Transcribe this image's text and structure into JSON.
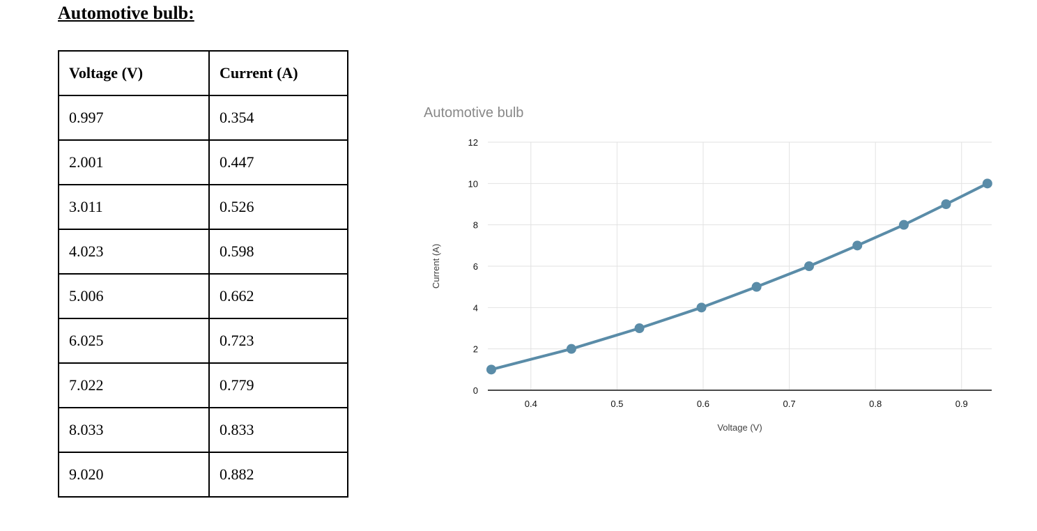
{
  "page": {
    "heading": "Automotive bulb:"
  },
  "table": {
    "headers": [
      "Voltage (V)",
      "Current (A)"
    ],
    "rows": [
      [
        "0.997",
        "0.354"
      ],
      [
        "2.001",
        "0.447"
      ],
      [
        "3.011",
        "0.526"
      ],
      [
        "4.023",
        "0.598"
      ],
      [
        "5.006",
        "0.662"
      ],
      [
        "6.025",
        "0.723"
      ],
      [
        "7.022",
        "0.779"
      ],
      [
        "8.033",
        "0.833"
      ],
      [
        "9.020",
        "0.882"
      ]
    ]
  },
  "chart_data": {
    "type": "line",
    "title": "Automotive bulb",
    "xlabel": "Voltage (V)",
    "ylabel": "Current (A)",
    "x": [
      0.354,
      0.447,
      0.526,
      0.598,
      0.662,
      0.723,
      0.779,
      0.833,
      0.882,
      0.93
    ],
    "y": [
      1,
      2,
      3,
      4,
      5,
      6,
      7,
      8,
      9,
      10
    ],
    "x_ticks": [
      0.4,
      0.5,
      0.6,
      0.7,
      0.8,
      0.9
    ],
    "y_ticks": [
      0,
      2,
      4,
      6,
      8,
      10,
      12
    ],
    "xlim": [
      0.35,
      0.935
    ],
    "ylim": [
      0,
      12
    ],
    "grid": true,
    "legend": "none",
    "series_color": "#5a8ca8",
    "grid_color": "#e2e2e2",
    "axis_color": "#4a4a4a",
    "tick_color": "#111111",
    "axis_title_color": "#424242",
    "title_color": "#888888"
  }
}
